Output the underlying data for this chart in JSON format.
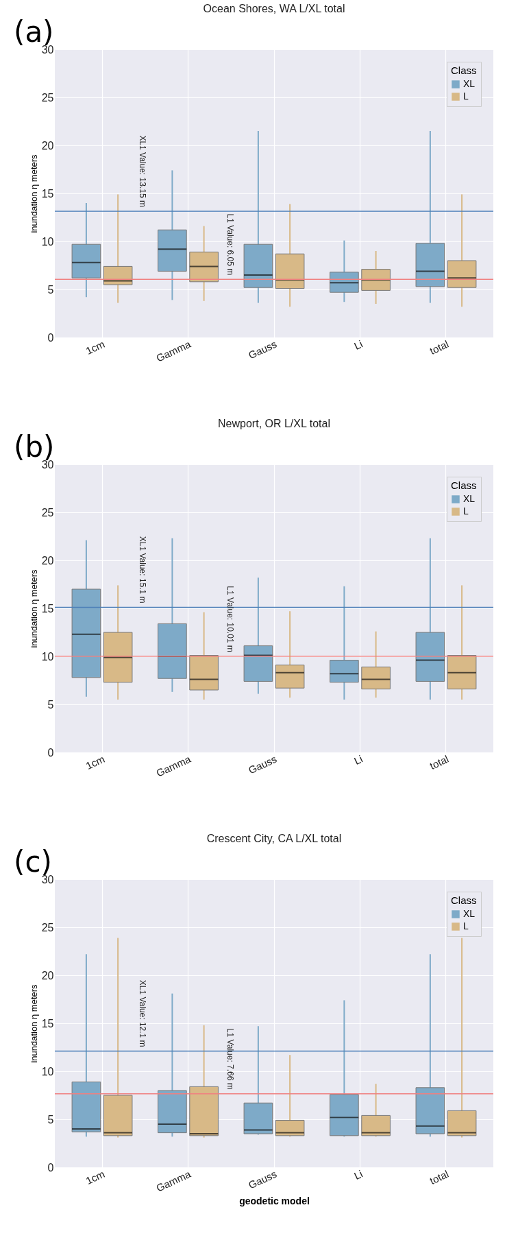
{
  "chart_data": [
    {
      "type": "box",
      "title": "Ocean Shores, WA L/XL total",
      "ylabel": "inundation η meters",
      "legend_title": "Class",
      "legend": "top right",
      "grid": true,
      "annotations": [
        "(a)"
      ],
      "categories": [
        "1cm",
        "Gamma",
        "Gauss",
        "Li",
        "total"
      ],
      "ylim": [
        0,
        30
      ],
      "yticks": [
        0,
        5,
        10,
        15,
        20,
        25,
        30
      ],
      "series": [
        {
          "name": "XL",
          "color": "#7eaac8",
          "boxes": [
            {
              "low": 4.2,
              "q1": 6.2,
              "median": 7.8,
              "q3": 9.7,
              "high": 14.0
            },
            {
              "low": 3.9,
              "q1": 6.9,
              "median": 9.2,
              "q3": 11.2,
              "high": 17.4
            },
            {
              "low": 3.6,
              "q1": 5.2,
              "median": 6.5,
              "q3": 9.7,
              "high": 21.5
            },
            {
              "low": 3.7,
              "q1": 4.7,
              "median": 5.7,
              "q3": 6.8,
              "high": 10.1
            },
            {
              "low": 3.6,
              "q1": 5.3,
              "median": 6.9,
              "q3": 9.8,
              "high": 21.5
            }
          ]
        },
        {
          "name": "L",
          "color": "#d8b987",
          "boxes": [
            {
              "low": 3.6,
              "q1": 5.5,
              "median": 5.9,
              "q3": 7.4,
              "high": 14.9
            },
            {
              "low": 3.8,
              "q1": 5.8,
              "median": 7.4,
              "q3": 8.9,
              "high": 11.6
            },
            {
              "low": 3.2,
              "q1": 5.1,
              "median": 6.0,
              "q3": 8.7,
              "high": 13.9
            },
            {
              "low": 3.5,
              "q1": 4.9,
              "median": 6.0,
              "q3": 7.1,
              "high": 9.0
            },
            {
              "low": 3.2,
              "q1": 5.2,
              "median": 6.2,
              "q3": 8.0,
              "high": 14.9
            }
          ]
        }
      ],
      "ref_lines": [
        {
          "axis": "y",
          "value": 13.15,
          "label": "XL1 Value: 13.15 m",
          "color": "#4c7fb8"
        },
        {
          "axis": "y",
          "value": 6.05,
          "label": "L1 Value: 6.05 m",
          "color": "#f08080"
        }
      ]
    },
    {
      "type": "box",
      "title": "Newport, OR L/XL total",
      "ylabel": "inundation η meters",
      "legend_title": "Class",
      "legend": "top right",
      "grid": true,
      "annotations": [
        "(b)"
      ],
      "categories": [
        "1cm",
        "Gamma",
        "Gauss",
        "Li",
        "total"
      ],
      "ylim": [
        0,
        30
      ],
      "yticks": [
        0,
        5,
        10,
        15,
        20,
        25,
        30
      ],
      "series": [
        {
          "name": "XL",
          "color": "#7eaac8",
          "boxes": [
            {
              "low": 5.8,
              "q1": 7.8,
              "median": 12.3,
              "q3": 17.0,
              "high": 22.1
            },
            {
              "low": 6.3,
              "q1": 7.7,
              "median": 10.0,
              "q3": 13.4,
              "high": 22.3
            },
            {
              "low": 6.1,
              "q1": 7.4,
              "median": 10.1,
              "q3": 11.1,
              "high": 18.2
            },
            {
              "low": 5.5,
              "q1": 7.3,
              "median": 8.2,
              "q3": 9.6,
              "high": 17.3
            },
            {
              "low": 5.5,
              "q1": 7.4,
              "median": 9.6,
              "q3": 12.5,
              "high": 22.3
            }
          ]
        },
        {
          "name": "L",
          "color": "#d8b987",
          "boxes": [
            {
              "low": 5.5,
              "q1": 7.3,
              "median": 9.9,
              "q3": 12.5,
              "high": 17.4
            },
            {
              "low": 5.5,
              "q1": 6.5,
              "median": 7.6,
              "q3": 10.1,
              "high": 14.6
            },
            {
              "low": 5.7,
              "q1": 6.7,
              "median": 8.3,
              "q3": 9.1,
              "high": 14.7
            },
            {
              "low": 5.7,
              "q1": 6.6,
              "median": 7.6,
              "q3": 8.9,
              "high": 12.6
            },
            {
              "low": 5.5,
              "q1": 6.6,
              "median": 8.3,
              "q3": 10.1,
              "high": 17.4
            }
          ]
        }
      ],
      "ref_lines": [
        {
          "axis": "y",
          "value": 15.1,
          "label": "XL1 Value: 15.1 m",
          "color": "#4c7fb8"
        },
        {
          "axis": "y",
          "value": 10.01,
          "label": "L1 Value: 10.01 m",
          "color": "#f08080"
        }
      ]
    },
    {
      "type": "box",
      "title": "Crescent City, CA L/XL total",
      "xlabel": "geodetic model",
      "ylabel": "inundation η meters",
      "legend_title": "Class",
      "legend": "top right",
      "grid": true,
      "annotations": [
        "(c)"
      ],
      "categories": [
        "1cm",
        "Gamma",
        "Gauss",
        "Li",
        "total"
      ],
      "ylim": [
        0,
        30
      ],
      "yticks": [
        0,
        5,
        10,
        15,
        20,
        25,
        30
      ],
      "series": [
        {
          "name": "XL",
          "color": "#7eaac8",
          "boxes": [
            {
              "low": 3.2,
              "q1": 3.7,
              "median": 4.0,
              "q3": 8.9,
              "high": 22.2
            },
            {
              "low": 3.2,
              "q1": 3.6,
              "median": 4.5,
              "q3": 8.0,
              "high": 18.1
            },
            {
              "low": 3.4,
              "q1": 3.5,
              "median": 3.9,
              "q3": 6.7,
              "high": 14.7
            },
            {
              "low": 3.2,
              "q1": 3.3,
              "median": 5.2,
              "q3": 7.6,
              "high": 17.4
            },
            {
              "low": 3.2,
              "q1": 3.5,
              "median": 4.3,
              "q3": 8.3,
              "high": 22.2
            }
          ]
        },
        {
          "name": "L",
          "color": "#d8b987",
          "boxes": [
            {
              "low": 3.1,
              "q1": 3.3,
              "median": 3.6,
              "q3": 7.5,
              "high": 23.9
            },
            {
              "low": 3.1,
              "q1": 3.3,
              "median": 3.5,
              "q3": 8.4,
              "high": 14.8
            },
            {
              "low": 3.2,
              "q1": 3.3,
              "median": 3.6,
              "q3": 4.9,
              "high": 11.7
            },
            {
              "low": 3.2,
              "q1": 3.3,
              "median": 3.6,
              "q3": 5.4,
              "high": 8.7
            },
            {
              "low": 3.1,
              "q1": 3.3,
              "median": 3.6,
              "q3": 5.9,
              "high": 23.9
            }
          ]
        }
      ],
      "ref_lines": [
        {
          "axis": "y",
          "value": 12.1,
          "label": "XL1 Value: 12.1 m",
          "color": "#4c7fb8"
        },
        {
          "axis": "y",
          "value": 7.66,
          "label": "L1 Value: 7.66 m",
          "color": "#f08080"
        }
      ]
    }
  ]
}
